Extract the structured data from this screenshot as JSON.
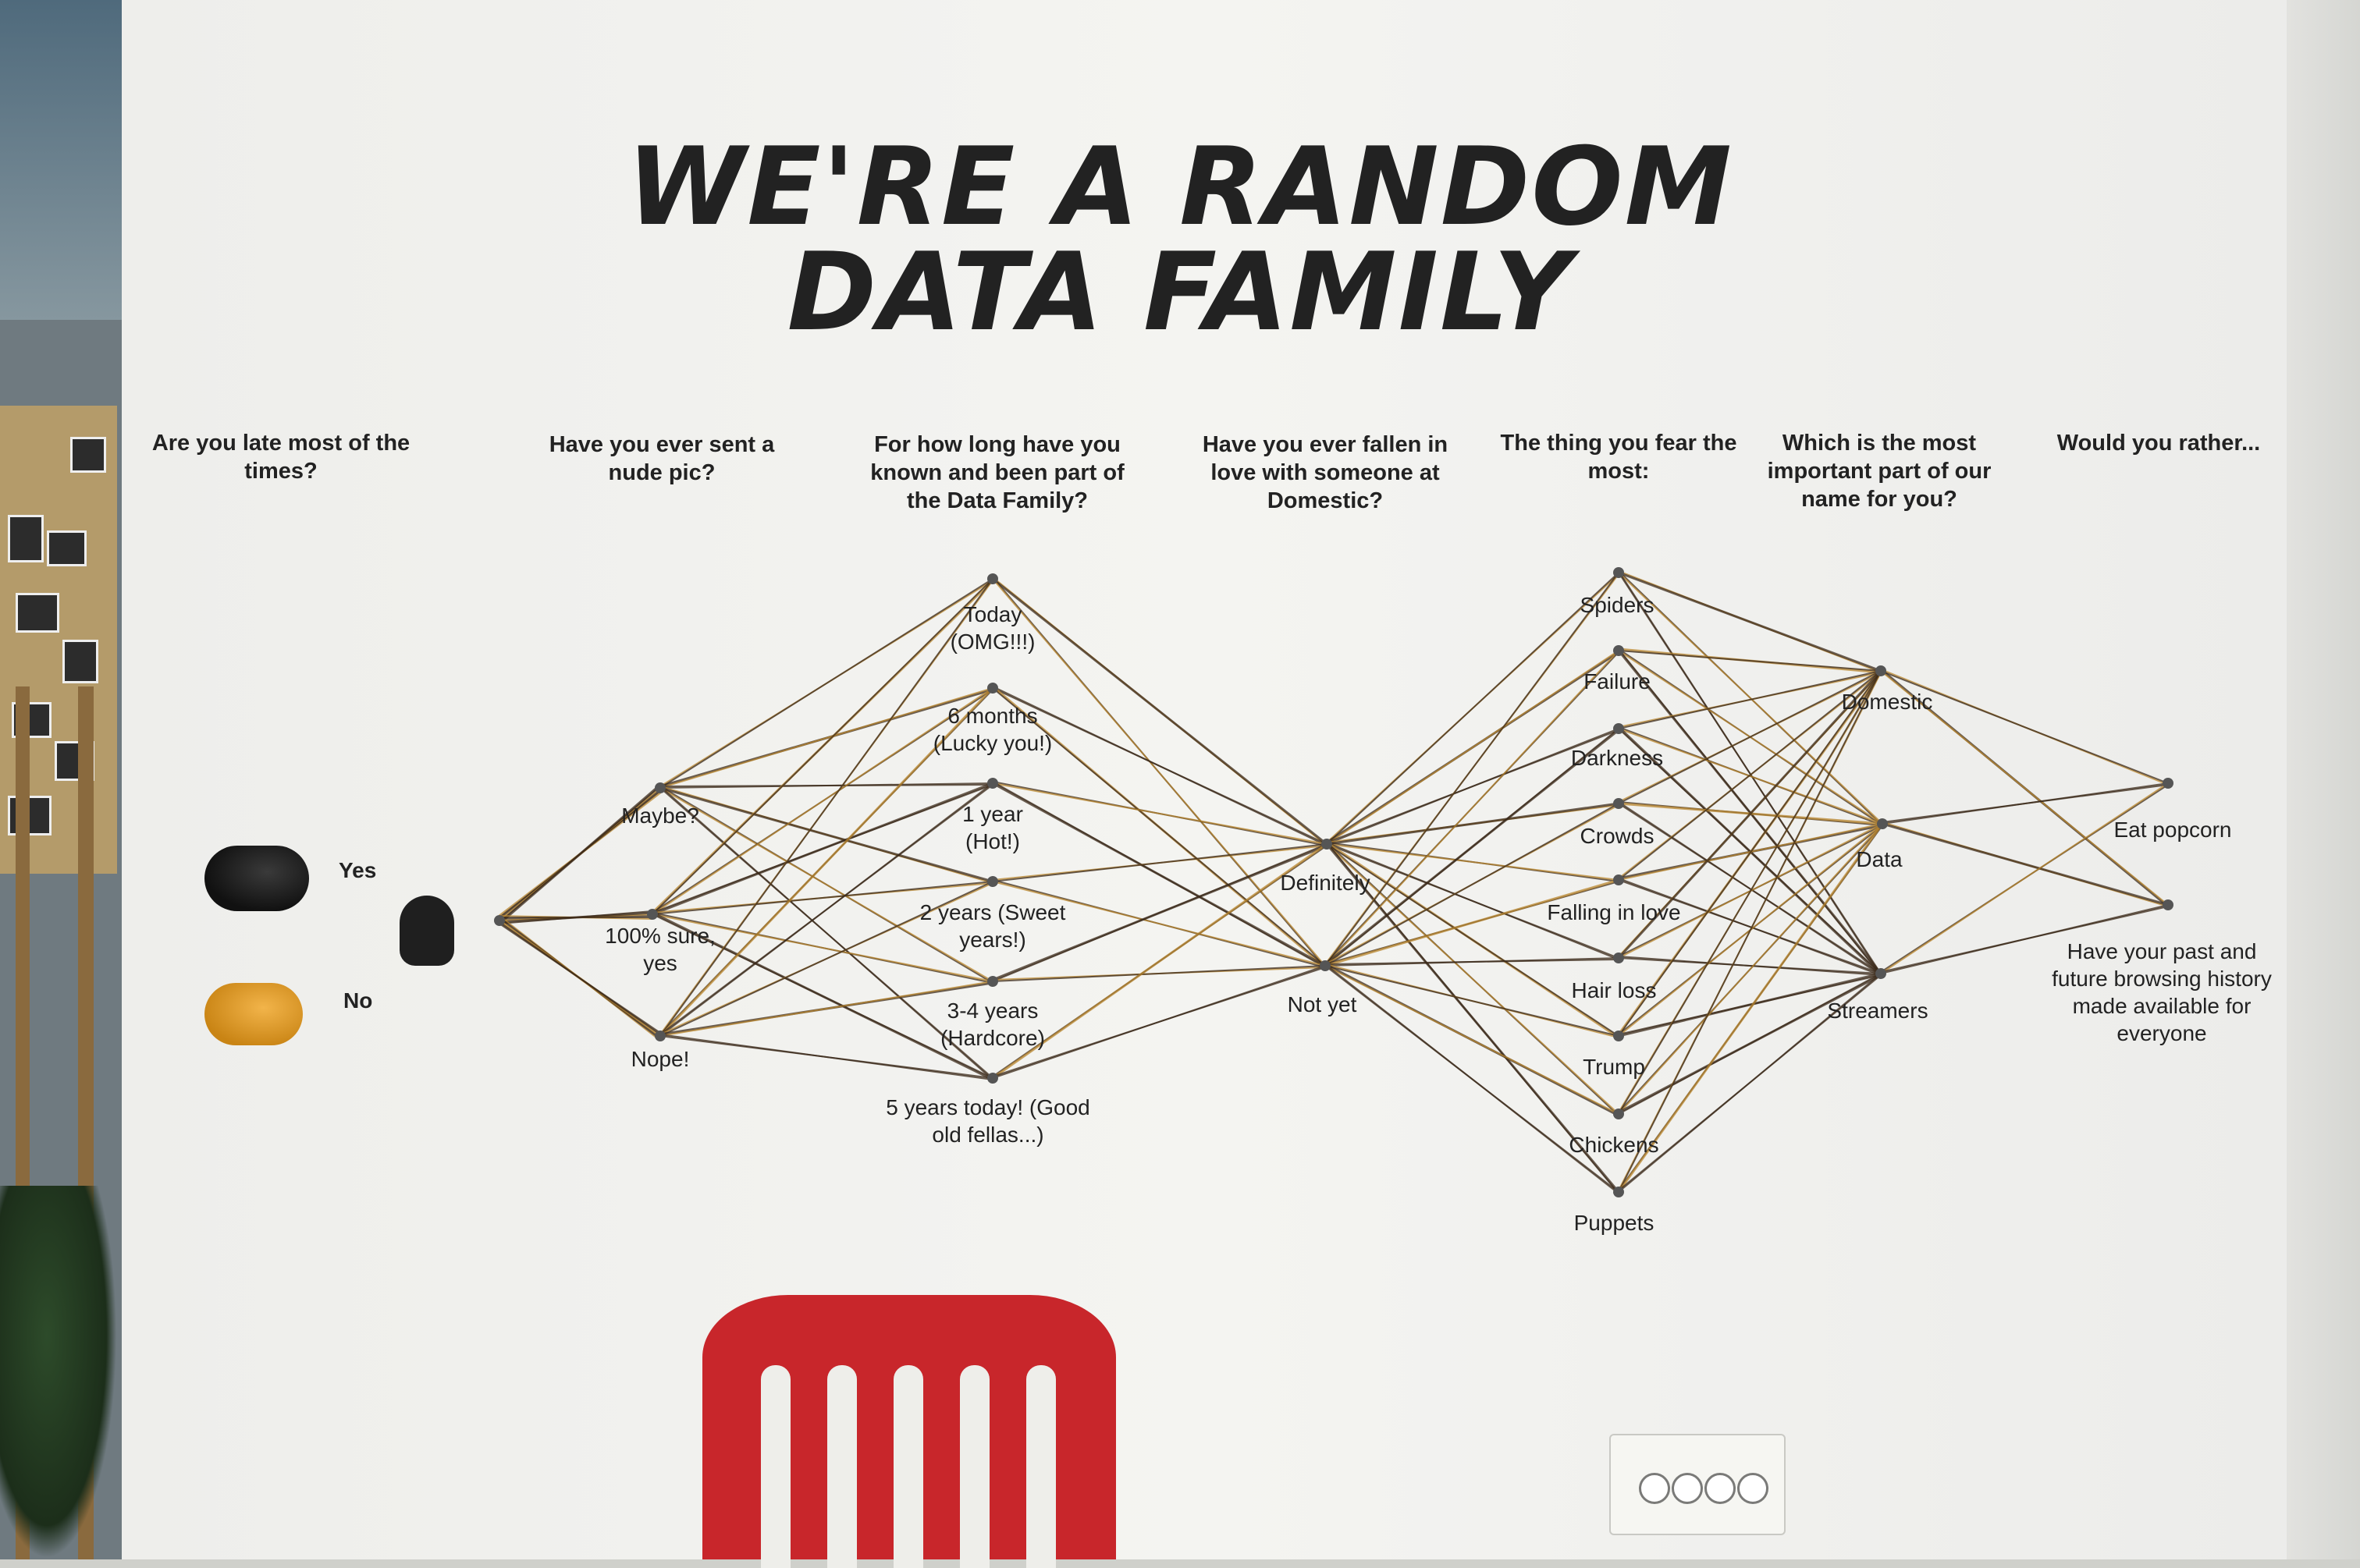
{
  "title": {
    "line1": "WE'RE A RANDOM",
    "line2": "DATA FAMILY"
  },
  "questions": [
    {
      "text": "Are you late most of the times?",
      "options": [
        "Yes",
        "No"
      ]
    },
    {
      "text": "Have you ever sent a nude pic?",
      "options": [
        "Maybe?",
        "100% sure, yes",
        "Nope!"
      ]
    },
    {
      "text": "For how long have you known and been part of the Data Family?",
      "options": [
        "Today (OMG!!!)",
        "6 months (Lucky you!)",
        "1 year (Hot!)",
        "2 years (Sweet years!)",
        "3-4 years (Hardcore)",
        "5 years today! (Good old fellas...)"
      ]
    },
    {
      "text": "Have you ever fallen in love with someone at Domestic?",
      "options": [
        "Definitely",
        "Not yet"
      ]
    },
    {
      "text": "The thing you fear the most:",
      "options": [
        "Spiders",
        "Failure",
        "Darkness",
        "Crowds",
        "Falling in love",
        "Hair loss",
        "Trump",
        "Chickens",
        "Puppets"
      ]
    },
    {
      "text": "Which is the most important part of our name for you?",
      "options": [
        "Domestic",
        "Data",
        "Streamers"
      ]
    },
    {
      "text": "Would you rather...",
      "options": [
        "Eat popcorn",
        "Have your past and future browsing history made available for everyone"
      ]
    }
  ],
  "colors": {
    "wall": "#f1f1ee",
    "ink": "#222222",
    "string_dark": "#3b2a1a",
    "string_gold": "#b8862e",
    "chair": "#c8262b",
    "spool_yellow": "#e5a22b"
  }
}
